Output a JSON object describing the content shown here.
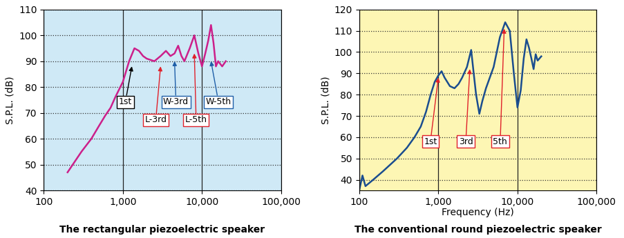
{
  "chart_data": [
    {
      "type": "line",
      "title": "The rectangular piezoelectric speaker",
      "y_label": "S.P.L. (dB)",
      "log": "x",
      "grid": true,
      "color": "#cc1f8a",
      "xlim": [
        100,
        100000
      ],
      "ylim": [
        40,
        110
      ],
      "xticks": [
        100,
        {
          "value": 1000,
          "label": "1,000"
        },
        {
          "value": 10000,
          "label": "10,000"
        },
        {
          "value": 100000,
          "label": "100,000"
        }
      ],
      "yticks": [
        40,
        50,
        60,
        70,
        80,
        90,
        100,
        110
      ],
      "x": [
        200,
        300,
        400,
        500,
        600,
        700,
        800,
        1000,
        1200,
        1400,
        1600,
        1800,
        2000,
        2500,
        3000,
        3500,
        4000,
        4500,
        5000,
        5500,
        6000,
        7000,
        8000,
        9000,
        10000,
        11000,
        12000,
        13000,
        14000,
        15000,
        16000,
        18000,
        20000
      ],
      "values": [
        47,
        55,
        60,
        65,
        69,
        72,
        76,
        82,
        90,
        95,
        94,
        92,
        91,
        90,
        92,
        94,
        92,
        93,
        96,
        92,
        90,
        95,
        100,
        93,
        88,
        93,
        98,
        104,
        97,
        88,
        90,
        88,
        90
      ],
      "annotations": [
        {
          "text": "1st",
          "x": 1300,
          "y": 88,
          "color": "#000000"
        },
        {
          "text": "L-3rd",
          "x": 3000,
          "y": 88,
          "color": "#e0202a"
        },
        {
          "text": "W-3rd",
          "x": 4500,
          "y": 90,
          "color": "#1f5fa8"
        },
        {
          "text": "L-5th",
          "x": 8000,
          "y": 93,
          "color": "#e0202a"
        },
        {
          "text": "W-5th",
          "x": 13000,
          "y": 90,
          "color": "#1f5fa8"
        }
      ]
    },
    {
      "type": "line",
      "title": "The conventional round piezoelectric speaker",
      "x_label": "Frequency (Hz)",
      "y_label": "S.P.L. (dB)",
      "log": "x",
      "grid": true,
      "color": "#1a4d8f",
      "xlim": [
        100,
        100000
      ],
      "ylim": [
        35,
        120
      ],
      "xticks": [
        100,
        {
          "value": 1000,
          "label": "1,000"
        },
        {
          "value": 10000,
          "label": "10,000"
        },
        {
          "value": 100000,
          "label": "100,000"
        }
      ],
      "yticks": [
        40,
        50,
        60,
        70,
        80,
        90,
        100,
        110,
        120
      ],
      "x": [
        100,
        110,
        120,
        150,
        200,
        300,
        400,
        500,
        600,
        700,
        800,
        900,
        1000,
        1100,
        1200,
        1400,
        1600,
        1800,
        2000,
        2300,
        2600,
        2800,
        3000,
        3300,
        3600,
        4000,
        5000,
        6000,
        7000,
        8000,
        9000,
        10000,
        11000,
        12000,
        13000,
        14000,
        15000,
        16000,
        17000,
        18000,
        20000
      ],
      "values": [
        35,
        42,
        37,
        40,
        44,
        50,
        55,
        60,
        65,
        72,
        80,
        86,
        89,
        91,
        88,
        84,
        83,
        85,
        88,
        93,
        101,
        90,
        80,
        71,
        77,
        83,
        93,
        107,
        114,
        110,
        90,
        74,
        82,
        97,
        106,
        102,
        97,
        92,
        99,
        96,
        98
      ],
      "annotations": [
        {
          "text": "1st",
          "x": 1000,
          "y": 88,
          "color": "#e0202a"
        },
        {
          "text": "3rd",
          "x": 2500,
          "y": 92,
          "color": "#e0202a"
        },
        {
          "text": "5th",
          "x": 6800,
          "y": 111,
          "color": "#e0202a"
        }
      ]
    }
  ]
}
